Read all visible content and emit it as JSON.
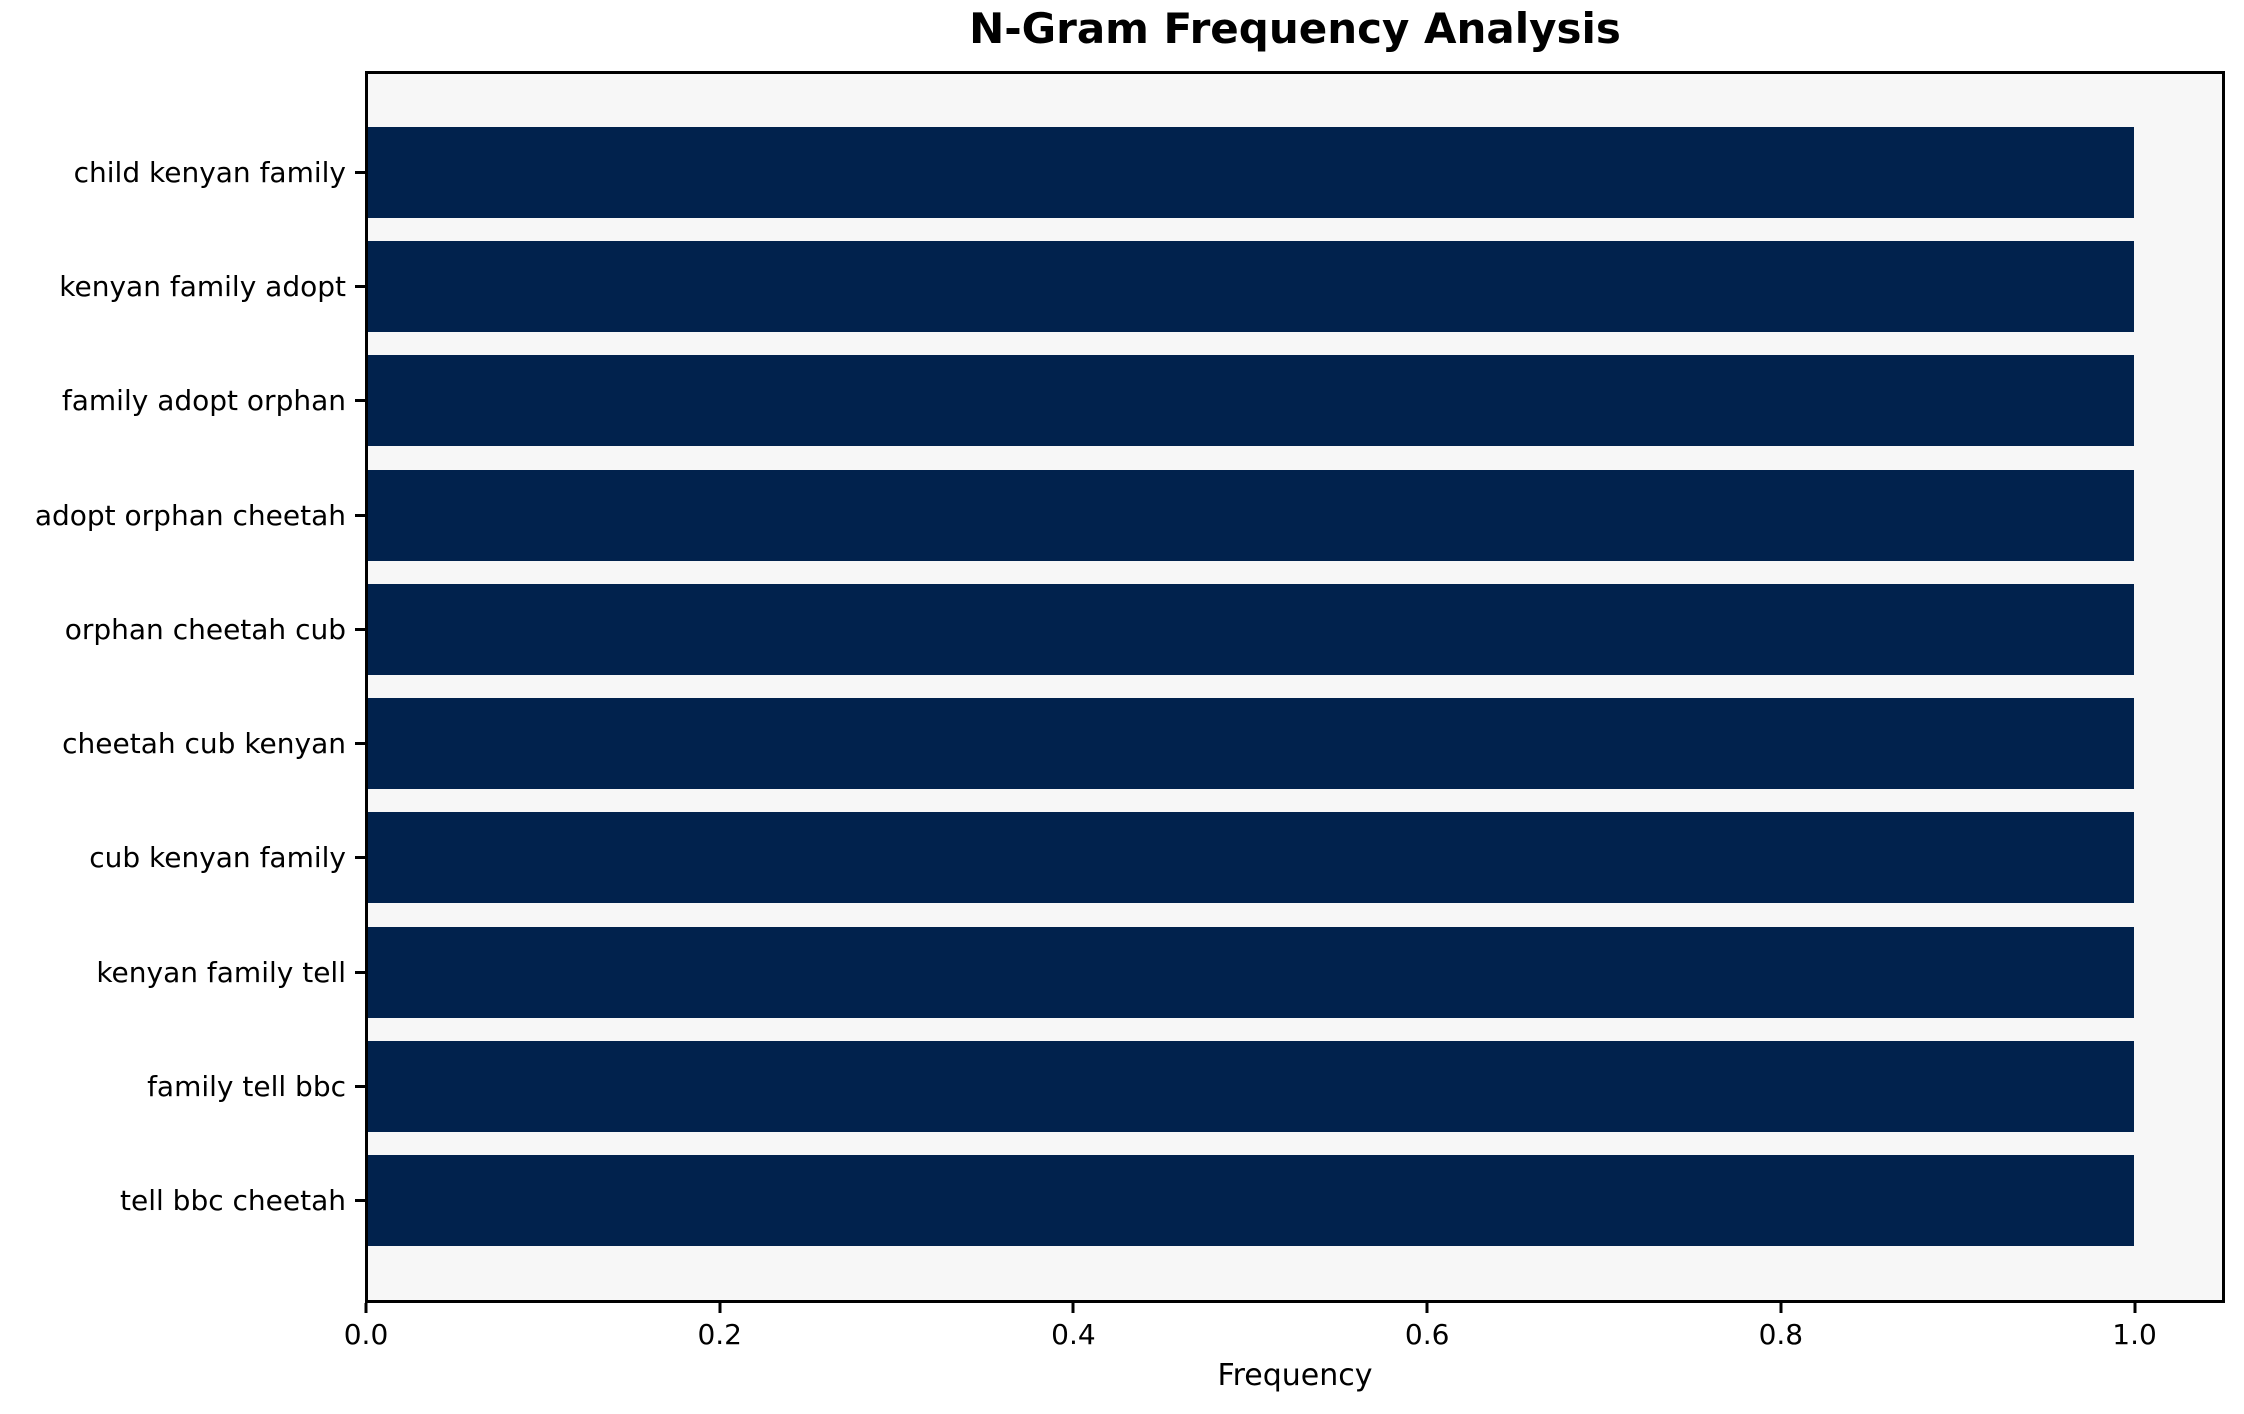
{
  "figure": {
    "background": "#ffffff"
  },
  "chart_data": {
    "type": "bar",
    "orientation": "horizontal",
    "title": "N-Gram Frequency Analysis",
    "xlabel": "Frequency",
    "ylabel": "",
    "categories": [
      "child kenyan family",
      "kenyan family adopt",
      "family adopt orphan",
      "adopt orphan cheetah",
      "orphan cheetah cub",
      "cheetah cub kenyan",
      "cub kenyan family",
      "kenyan family tell",
      "family tell bbc",
      "tell bbc cheetah"
    ],
    "values": [
      1.0,
      1.0,
      1.0,
      1.0,
      1.0,
      1.0,
      1.0,
      1.0,
      1.0,
      1.0
    ],
    "xticks": [
      "0.0",
      "0.2",
      "0.4",
      "0.6",
      "0.8",
      "1.0"
    ],
    "xtick_values": [
      0,
      0.2,
      0.4,
      0.6,
      0.8,
      1.0
    ],
    "xlim": [
      0,
      1.05
    ],
    "bar_color": "#01224d",
    "plot_background": "#f7f7f7",
    "axis_color": "#000000",
    "grid": false,
    "legend": null
  }
}
